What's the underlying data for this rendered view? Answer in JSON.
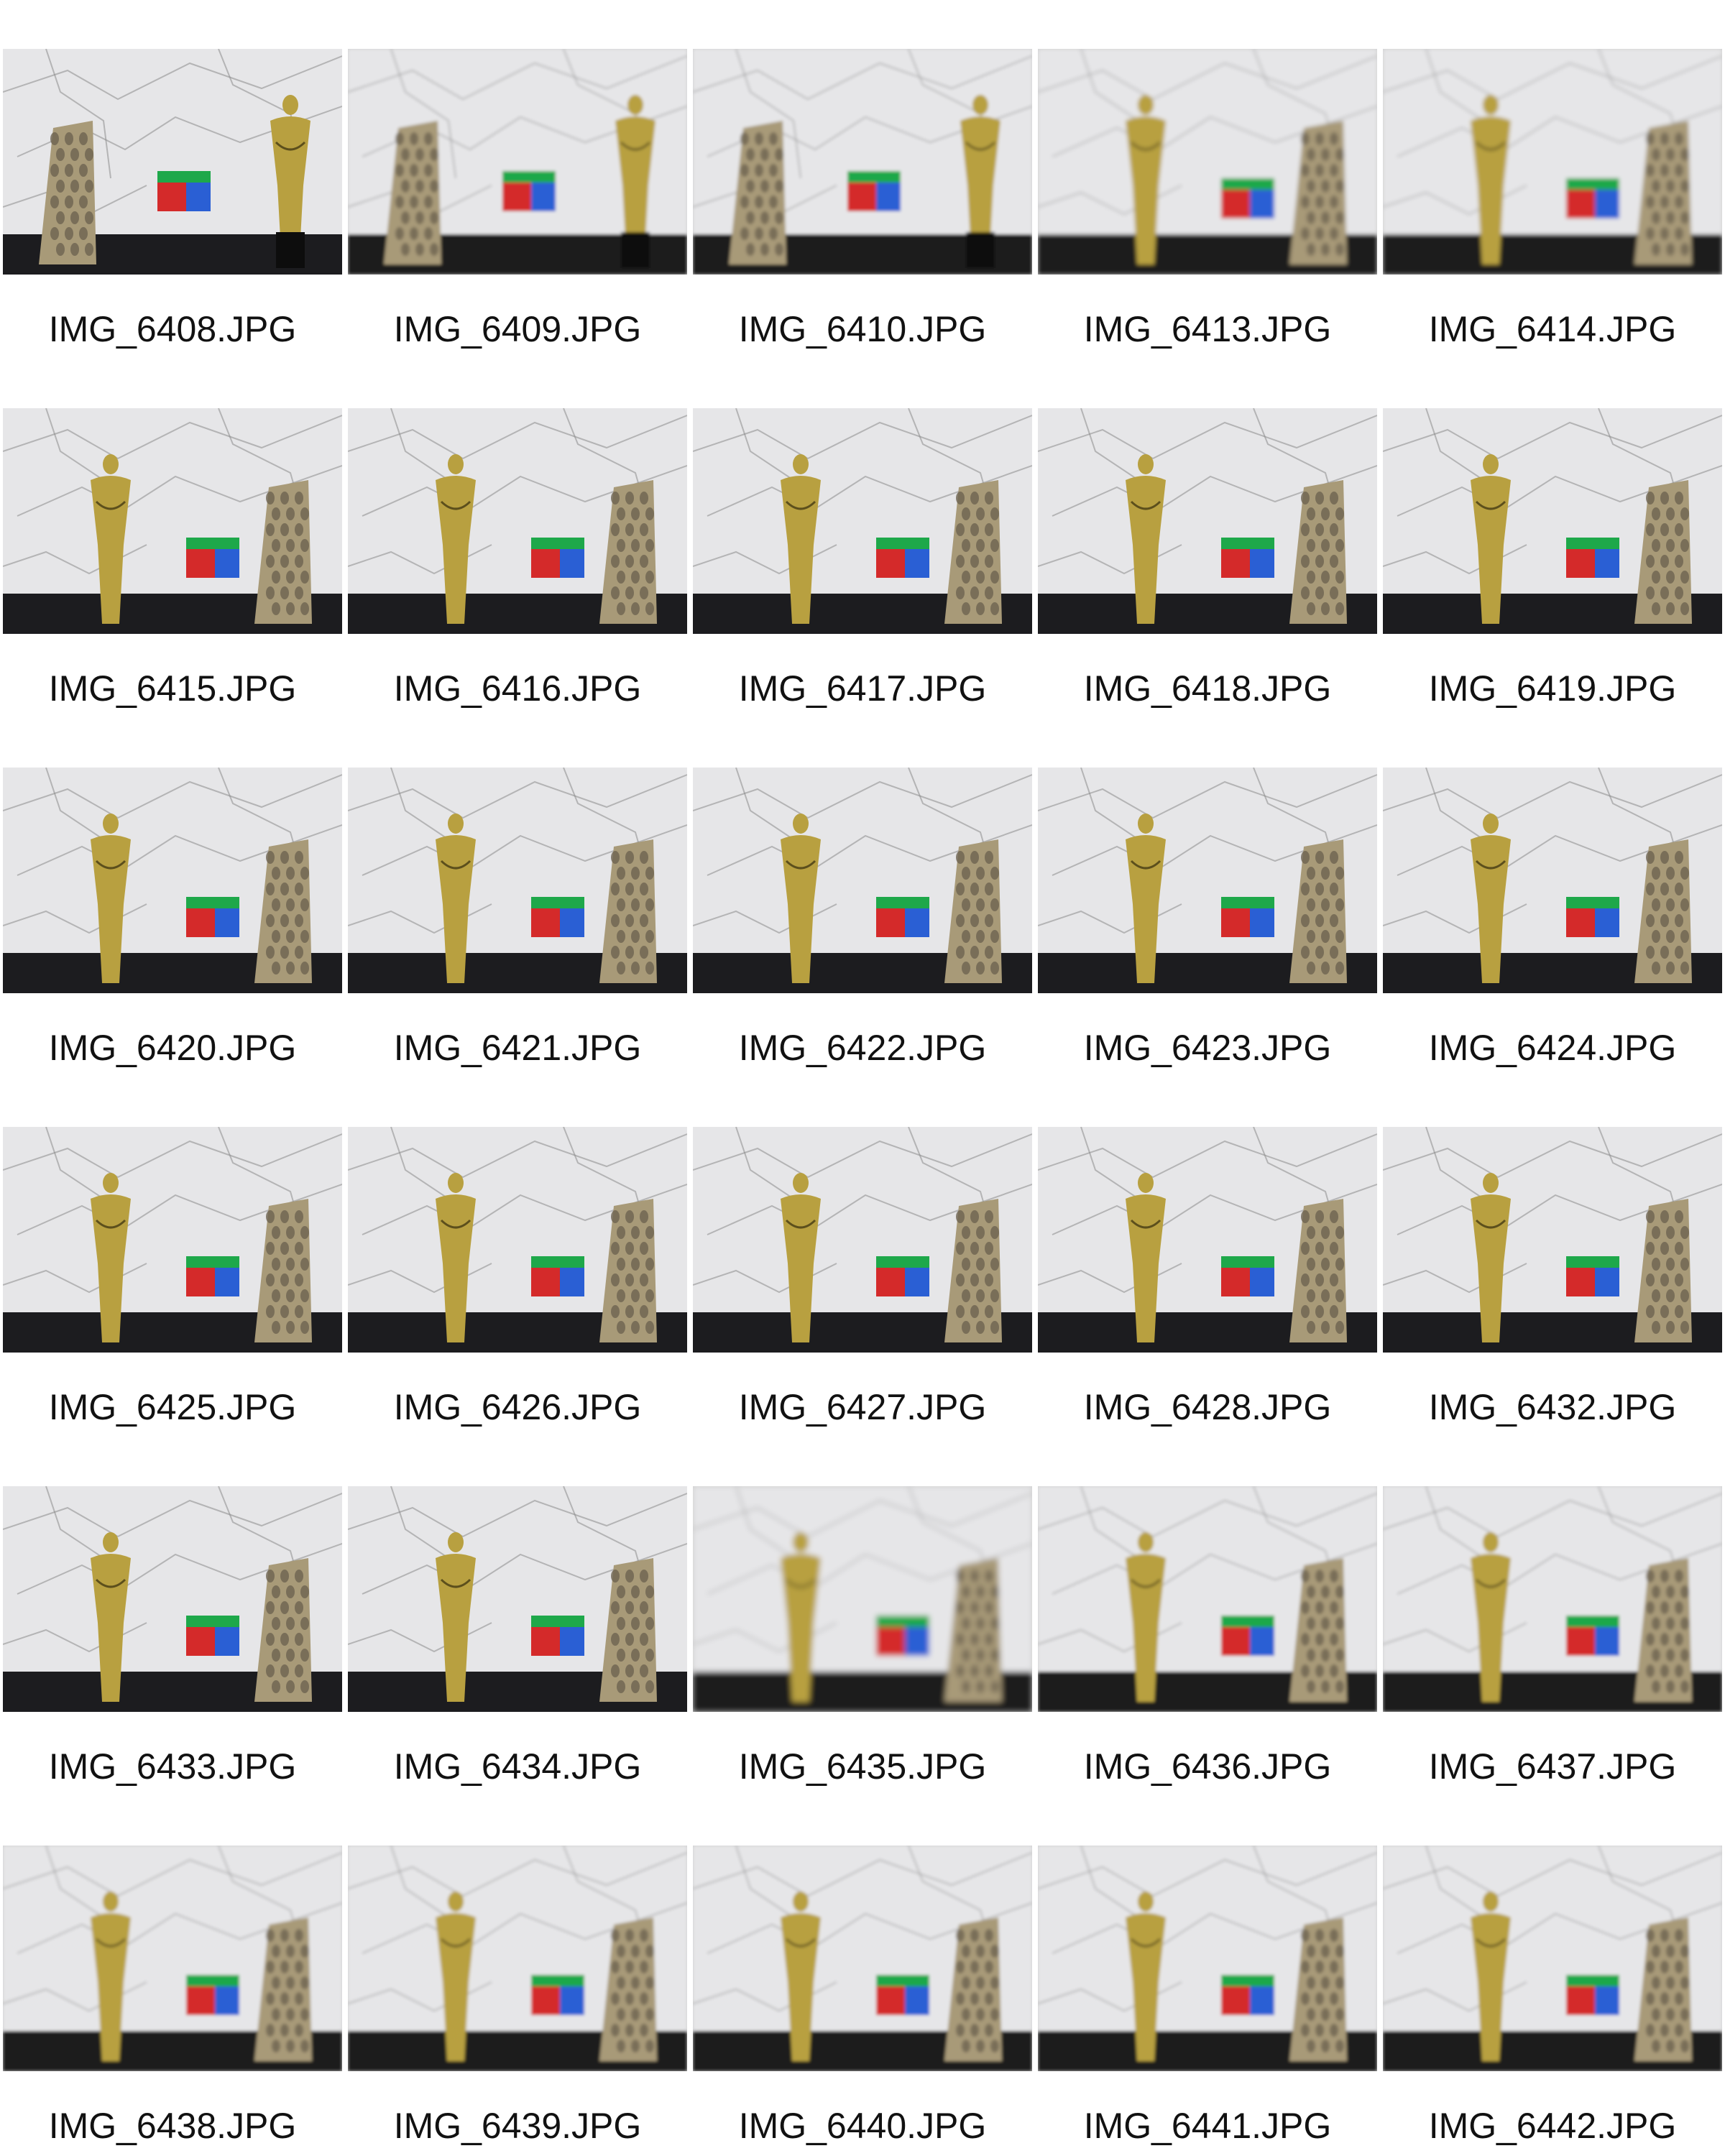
{
  "thumbnails": [
    {
      "filename": "IMG_6408.JPG",
      "figurine": "left",
      "blur": 0
    },
    {
      "filename": "IMG_6409.JPG",
      "figurine": "left",
      "blur": 2
    },
    {
      "filename": "IMG_6410.JPG",
      "figurine": "left",
      "blur": 2
    },
    {
      "filename": "IMG_6413.JPG",
      "figurine": "right",
      "blur": 3
    },
    {
      "filename": "IMG_6414.JPG",
      "figurine": "right",
      "blur": 3
    },
    {
      "filename": "IMG_6415.JPG",
      "figurine": "right",
      "blur": 0
    },
    {
      "filename": "IMG_6416.JPG",
      "figurine": "right",
      "blur": 0
    },
    {
      "filename": "IMG_6417.JPG",
      "figurine": "right",
      "blur": 0
    },
    {
      "filename": "IMG_6418.JPG",
      "figurine": "right",
      "blur": 0
    },
    {
      "filename": "IMG_6419.JPG",
      "figurine": "right",
      "blur": 0
    },
    {
      "filename": "IMG_6420.JPG",
      "figurine": "right",
      "blur": 0
    },
    {
      "filename": "IMG_6421.JPG",
      "figurine": "right",
      "blur": 0
    },
    {
      "filename": "IMG_6422.JPG",
      "figurine": "right",
      "blur": 0
    },
    {
      "filename": "IMG_6423.JPG",
      "figurine": "right",
      "blur": 0
    },
    {
      "filename": "IMG_6424.JPG",
      "figurine": "right",
      "blur": 0
    },
    {
      "filename": "IMG_6425.JPG",
      "figurine": "right",
      "blur": 0
    },
    {
      "filename": "IMG_6426.JPG",
      "figurine": "right",
      "blur": 0
    },
    {
      "filename": "IMG_6427.JPG",
      "figurine": "right",
      "blur": 0
    },
    {
      "filename": "IMG_6428.JPG",
      "figurine": "right",
      "blur": 0
    },
    {
      "filename": "IMG_6432.JPG",
      "figurine": "right",
      "blur": 0
    },
    {
      "filename": "IMG_6433.JPG",
      "figurine": "right",
      "blur": 0
    },
    {
      "filename": "IMG_6434.JPG",
      "figurine": "right",
      "blur": 0
    },
    {
      "filename": "IMG_6435.JPG",
      "figurine": "right",
      "blur": 4
    },
    {
      "filename": "IMG_6436.JPG",
      "figurine": "right",
      "blur": 2
    },
    {
      "filename": "IMG_6437.JPG",
      "figurine": "right",
      "blur": 2
    },
    {
      "filename": "IMG_6438.JPG",
      "figurine": "right",
      "blur": 2
    },
    {
      "filename": "IMG_6439.JPG",
      "figurine": "right",
      "blur": 2
    },
    {
      "filename": "IMG_6440.JPG",
      "figurine": "right",
      "blur": 2
    },
    {
      "filename": "IMG_6441.JPG",
      "figurine": "right",
      "blur": 2
    },
    {
      "filename": "IMG_6442.JPG",
      "figurine": "right",
      "blur": 2
    }
  ],
  "colors": {
    "background": "#ffffff",
    "caption": "#111111",
    "wall": "#e6e6e8",
    "marble_vein": "#8a8a8a",
    "table": "#1c1c1f",
    "gold": "#b8a040",
    "lattice": "#a89a78",
    "cube_red": "#d42a2a",
    "cube_green": "#1ea84a",
    "cube_blue": "#2a5fd4"
  }
}
